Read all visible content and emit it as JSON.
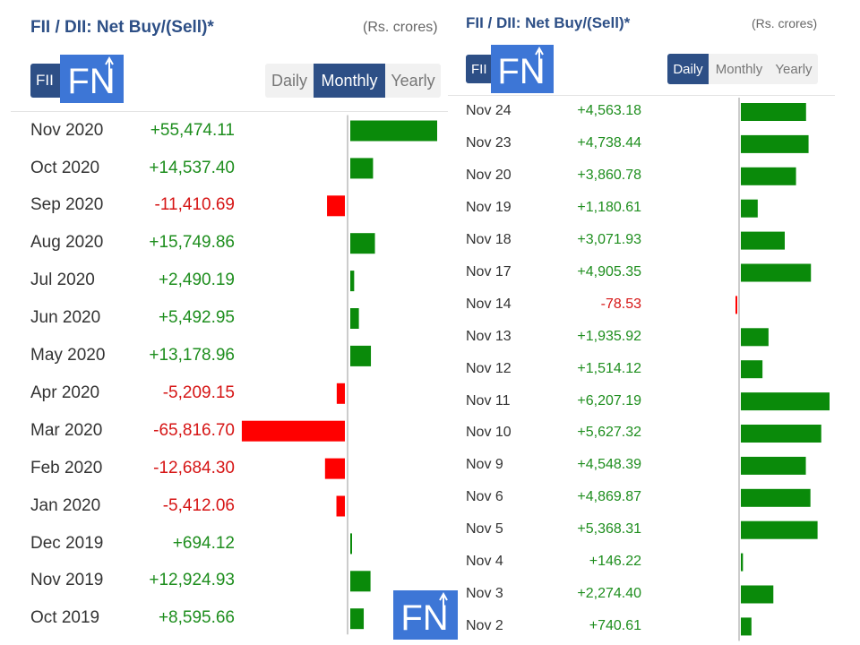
{
  "colors": {
    "brand": "#2d4f86",
    "logo": "#3d76d6",
    "positive_text": "#1e8e1e",
    "negative_text": "#d61515",
    "positive_bar": "#0a8a0a",
    "negative_bar": "#ff0000"
  },
  "icons": {
    "logo": "fn-logo-icon"
  },
  "monthly_panel": {
    "title": "FII / DII: Net Buy/(Sell)*",
    "units": "(Rs. crores)",
    "badge": "FII",
    "logo_text": "FN",
    "tabs": [
      {
        "label": "Daily",
        "active": false
      },
      {
        "label": "Monthly",
        "active": true
      },
      {
        "label": "Yearly",
        "active": false
      }
    ],
    "rows": [
      {
        "label": "Nov 2020",
        "value_text": "+55,474.11"
      },
      {
        "label": "Oct 2020",
        "value_text": "+14,537.40"
      },
      {
        "label": "Sep 2020",
        "value_text": "-11,410.69"
      },
      {
        "label": "Aug 2020",
        "value_text": "+15,749.86"
      },
      {
        "label": "Jul 2020",
        "value_text": "+2,490.19"
      },
      {
        "label": "Jun 2020",
        "value_text": "+5,492.95"
      },
      {
        "label": "May 2020",
        "value_text": "+13,178.96"
      },
      {
        "label": "Apr 2020",
        "value_text": "-5,209.15"
      },
      {
        "label": "Mar 2020",
        "value_text": "-65,816.70"
      },
      {
        "label": "Feb 2020",
        "value_text": "-12,684.30"
      },
      {
        "label": "Jan 2020",
        "value_text": "-5,412.06"
      },
      {
        "label": "Dec 2019",
        "value_text": "+694.12"
      },
      {
        "label": "Nov 2019",
        "value_text": "+12,924.93"
      },
      {
        "label": "Oct 2019",
        "value_text": "+8,595.66"
      }
    ]
  },
  "daily_panel": {
    "title": "FII / DII: Net Buy/(Sell)*",
    "units": "(Rs. crores)",
    "badge": "FII",
    "logo_text": "FN",
    "tabs": [
      {
        "label": "Daily",
        "active": true
      },
      {
        "label": "Monthly",
        "active": false
      },
      {
        "label": "Yearly",
        "active": false
      }
    ],
    "rows": [
      {
        "label": "Nov 24",
        "value_text": "+4,563.18"
      },
      {
        "label": "Nov 23",
        "value_text": "+4,738.44"
      },
      {
        "label": "Nov 20",
        "value_text": "+3,860.78"
      },
      {
        "label": "Nov 19",
        "value_text": "+1,180.61"
      },
      {
        "label": "Nov 18",
        "value_text": "+3,071.93"
      },
      {
        "label": "Nov 17",
        "value_text": "+4,905.35"
      },
      {
        "label": "Nov 14",
        "value_text": "-78.53"
      },
      {
        "label": "Nov 13",
        "value_text": "+1,935.92"
      },
      {
        "label": "Nov 12",
        "value_text": "+1,514.12"
      },
      {
        "label": "Nov 11",
        "value_text": "+6,207.19"
      },
      {
        "label": "Nov 10",
        "value_text": "+5,627.32"
      },
      {
        "label": "Nov 9",
        "value_text": "+4,548.39"
      },
      {
        "label": "Nov 6",
        "value_text": "+4,869.87"
      },
      {
        "label": "Nov 5",
        "value_text": "+5,368.31"
      },
      {
        "label": "Nov 4",
        "value_text": "+146.22"
      },
      {
        "label": "Nov 3",
        "value_text": "+2,274.40"
      },
      {
        "label": "Nov 2",
        "value_text": "+740.61"
      }
    ]
  },
  "corner_logo_text": "FN",
  "chart_data": [
    {
      "type": "bar",
      "title": "FII / DII: Net Buy/(Sell)*",
      "ylabel": "(Rs. crores)",
      "categories": [
        "Nov 2020",
        "Oct 2020",
        "Sep 2020",
        "Aug 2020",
        "Jul 2020",
        "Jun 2020",
        "May 2020",
        "Apr 2020",
        "Mar 2020",
        "Feb 2020",
        "Jan 2020",
        "Dec 2019",
        "Nov 2019",
        "Oct 2019"
      ],
      "values": [
        55474.11,
        14537.4,
        -11410.69,
        15749.86,
        2490.19,
        5492.95,
        13178.96,
        -5209.15,
        -65816.7,
        -12684.3,
        -5412.06,
        694.12,
        12924.93,
        8595.66
      ]
    },
    {
      "type": "bar",
      "title": "FII / DII: Net Buy/(Sell)*",
      "ylabel": "(Rs. crores)",
      "categories": [
        "Nov 24",
        "Nov 23",
        "Nov 20",
        "Nov 19",
        "Nov 18",
        "Nov 17",
        "Nov 14",
        "Nov 13",
        "Nov 12",
        "Nov 11",
        "Nov 10",
        "Nov 9",
        "Nov 6",
        "Nov 5",
        "Nov 4",
        "Nov 3",
        "Nov 2"
      ],
      "values": [
        4563.18,
        4738.44,
        3860.78,
        1180.61,
        3071.93,
        4905.35,
        -78.53,
        1935.92,
        1514.12,
        6207.19,
        5627.32,
        4548.39,
        4869.87,
        5368.31,
        146.22,
        2274.4,
        740.61
      ]
    }
  ]
}
